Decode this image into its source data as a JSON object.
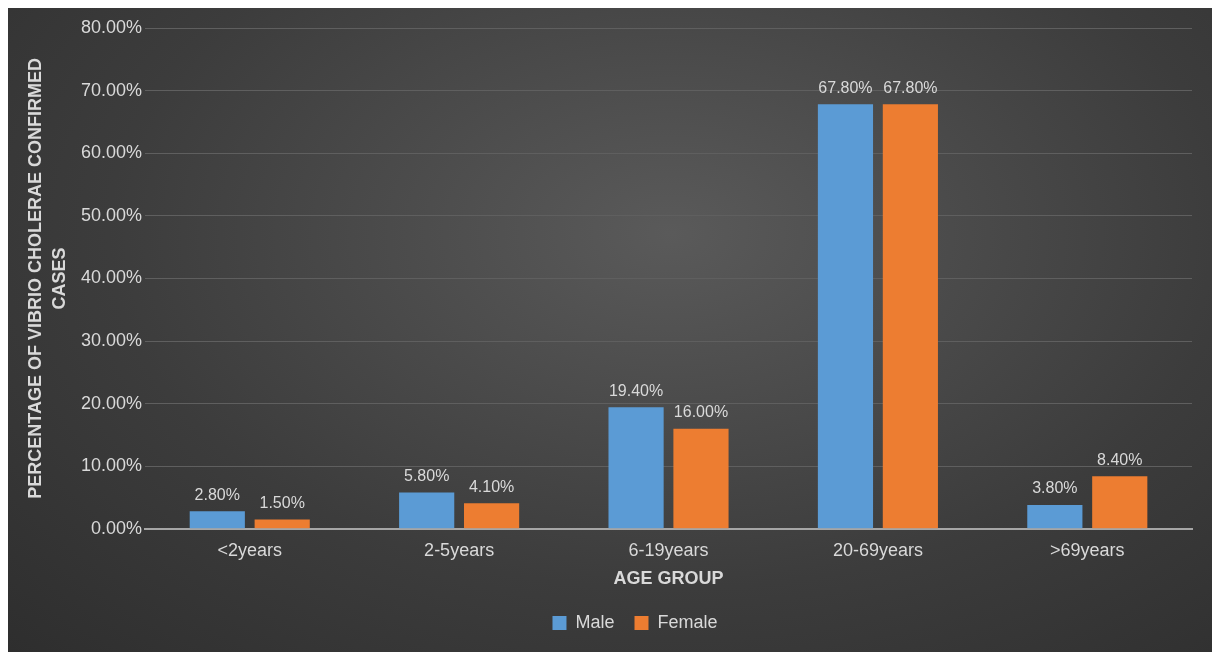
{
  "chart_data": {
    "type": "bar",
    "xlabel": "AGE GROUP",
    "ylabel": "PERCENTAGE OF VIBRIO CHOLERAE CONFIRMED CASES",
    "categories": [
      "<2years",
      "2-5years",
      "6-19years",
      "20-69years",
      ">69years"
    ],
    "series": [
      {
        "name": "Male",
        "color": "#5b9bd5",
        "values": [
          2.8,
          5.8,
          19.4,
          67.8,
          3.8
        ],
        "value_labels": [
          "2.80%",
          "5.80%",
          "19.40%",
          "67.80%",
          "3.80%"
        ]
      },
      {
        "name": "Female",
        "color": "#ed7d31",
        "values": [
          1.5,
          4.1,
          16.0,
          67.8,
          8.4
        ],
        "value_labels": [
          "1.50%",
          "4.10%",
          "16.00%",
          "67.80%",
          "8.40%"
        ]
      }
    ],
    "ylim": [
      0,
      80
    ],
    "yticks": [
      {
        "value": 0,
        "label": "0.00%"
      },
      {
        "value": 10,
        "label": "10.00%"
      },
      {
        "value": 20,
        "label": "20.00%"
      },
      {
        "value": 30,
        "label": "30.00%"
      },
      {
        "value": 40,
        "label": "40.00%"
      },
      {
        "value": 50,
        "label": "50.00%"
      },
      {
        "value": 60,
        "label": "60.00%"
      },
      {
        "value": 70,
        "label": "70.00%"
      },
      {
        "value": 80,
        "label": "80.00%"
      }
    ],
    "grid": "y",
    "legend": "bottom"
  }
}
